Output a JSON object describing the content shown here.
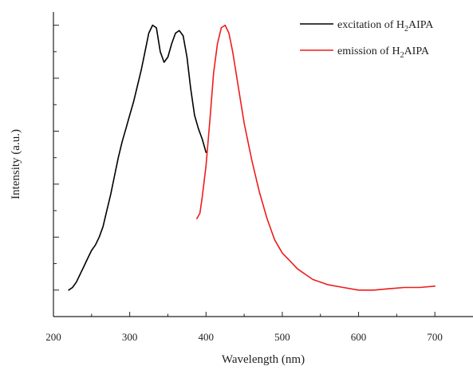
{
  "chart_data": {
    "type": "line",
    "title": "",
    "xlabel": "Wavelength (nm)",
    "ylabel": "Intensity (a.u.)",
    "xlim": [
      200,
      750
    ],
    "ylim": [
      -0.1,
      1.05
    ],
    "x_ticks": [
      200,
      300,
      400,
      500,
      600,
      700
    ],
    "y_ticks_labeled": false,
    "y_tick_count": 6,
    "grid": false,
    "legend_position": "top-right",
    "legend": [
      {
        "pre": "excitation of H",
        "sub": "2",
        "post": "AIPA",
        "color": "#000000"
      },
      {
        "pre": "emission of H",
        "sub": "2",
        "post": "AIPA",
        "color": "#ee1c1c"
      }
    ],
    "series": [
      {
        "color": "#000000",
        "points": [
          [
            220,
            0.0
          ],
          [
            225,
            0.01
          ],
          [
            230,
            0.03
          ],
          [
            235,
            0.06
          ],
          [
            240,
            0.09
          ],
          [
            245,
            0.12
          ],
          [
            250,
            0.15
          ],
          [
            255,
            0.17
          ],
          [
            260,
            0.2
          ],
          [
            265,
            0.24
          ],
          [
            270,
            0.3
          ],
          [
            275,
            0.36
          ],
          [
            280,
            0.43
          ],
          [
            285,
            0.5
          ],
          [
            290,
            0.56
          ],
          [
            295,
            0.61
          ],
          [
            300,
            0.66
          ],
          [
            305,
            0.71
          ],
          [
            310,
            0.77
          ],
          [
            315,
            0.83
          ],
          [
            320,
            0.9
          ],
          [
            325,
            0.97
          ],
          [
            330,
            1.0
          ],
          [
            335,
            0.99
          ],
          [
            340,
            0.9
          ],
          [
            345,
            0.86
          ],
          [
            350,
            0.88
          ],
          [
            355,
            0.93
          ],
          [
            360,
            0.97
          ],
          [
            365,
            0.98
          ],
          [
            370,
            0.96
          ],
          [
            375,
            0.88
          ],
          [
            380,
            0.76
          ],
          [
            385,
            0.66
          ],
          [
            390,
            0.61
          ],
          [
            395,
            0.57
          ],
          [
            400,
            0.52
          ]
        ]
      },
      {
        "color": "#ee1c1c",
        "points": [
          [
            388,
            0.27
          ],
          [
            392,
            0.29
          ],
          [
            395,
            0.35
          ],
          [
            400,
            0.47
          ],
          [
            405,
            0.64
          ],
          [
            410,
            0.82
          ],
          [
            415,
            0.93
          ],
          [
            420,
            0.99
          ],
          [
            425,
            1.0
          ],
          [
            430,
            0.97
          ],
          [
            435,
            0.9
          ],
          [
            440,
            0.81
          ],
          [
            445,
            0.72
          ],
          [
            450,
            0.63
          ],
          [
            460,
            0.49
          ],
          [
            470,
            0.37
          ],
          [
            480,
            0.27
          ],
          [
            490,
            0.19
          ],
          [
            500,
            0.14
          ],
          [
            510,
            0.11
          ],
          [
            520,
            0.08
          ],
          [
            530,
            0.06
          ],
          [
            540,
            0.04
          ],
          [
            550,
            0.03
          ],
          [
            560,
            0.02
          ],
          [
            580,
            0.01
          ],
          [
            600,
            0.0
          ],
          [
            620,
            0.0
          ],
          [
            640,
            0.005
          ],
          [
            660,
            0.01
          ],
          [
            680,
            0.01
          ],
          [
            700,
            0.015
          ]
        ]
      }
    ]
  }
}
